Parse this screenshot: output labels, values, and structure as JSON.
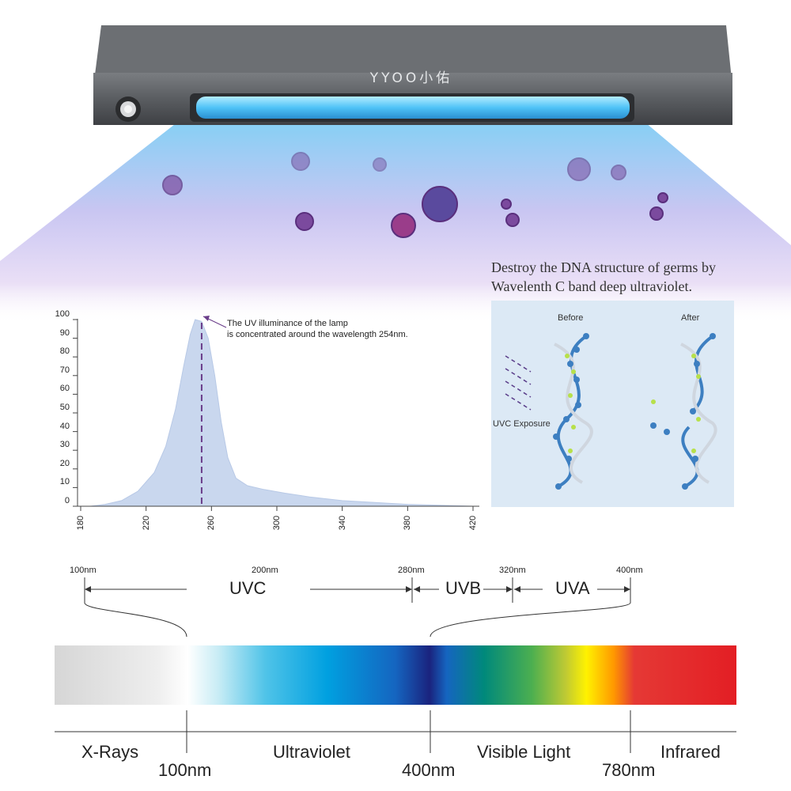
{
  "lamp": {
    "brand": "YYOO小佑"
  },
  "caption": {
    "line1": "Destroy the DNA structure of germs by",
    "line2": "Wavelenth C band deep ultraviolet."
  },
  "dna_panel": {
    "before_label": "Before",
    "after_label": "After",
    "exposure_label": "UVC Exposure"
  },
  "chart_data": {
    "type": "area",
    "title": "",
    "xlabel": "",
    "ylabel": "",
    "xlim": [
      180,
      425
    ],
    "ylim": [
      0,
      100
    ],
    "x_ticks": [
      "180",
      "220",
      "260",
      "300",
      "340",
      "380",
      "420"
    ],
    "y_ticks": [
      "100",
      "90",
      "80",
      "70",
      "60",
      "50",
      "40",
      "30",
      "20",
      "10",
      "0"
    ],
    "series": [
      {
        "x": [
          186,
          195,
          205,
          215,
          225,
          232,
          238,
          243,
          247,
          250,
          254,
          258,
          262,
          266,
          270,
          275,
          282,
          292,
          305,
          320,
          340,
          360,
          380,
          400,
          420
        ],
        "y": [
          0,
          1,
          3,
          8,
          18,
          32,
          52,
          75,
          92,
          100,
          99,
          90,
          70,
          45,
          26,
          15,
          11,
          9,
          7,
          5,
          3,
          2,
          1,
          0.5,
          0
        ],
        "color": "#c9d7ee"
      }
    ],
    "marker": {
      "x": 254,
      "y": 100,
      "color": "#6a3d8a"
    },
    "annotation": {
      "line1": "The UV illuminance of the lamp",
      "line2": "is concentrated around the wavelength 254nm."
    }
  },
  "bands": {
    "nm_labels": [
      "100nm",
      "200nm",
      "280nm",
      "320nm",
      "400nm"
    ],
    "uvc": "UVC",
    "uvb": "UVB",
    "uva": "UVA"
  },
  "spectrum": {
    "x_rays": "X-Rays",
    "ultraviolet": "Ultraviolet",
    "visible": "Visible Light",
    "infrared": "Infrared",
    "nm_100": "100nm",
    "nm_400": "400nm",
    "nm_780": "780nm"
  },
  "colors": {
    "lamp_body": "#55585c",
    "uv_tube": "#4fc3f7",
    "beam_top": "#8fd4f4",
    "beam_bottom": "#e9d9f3",
    "virus": "#7b4a9e"
  }
}
